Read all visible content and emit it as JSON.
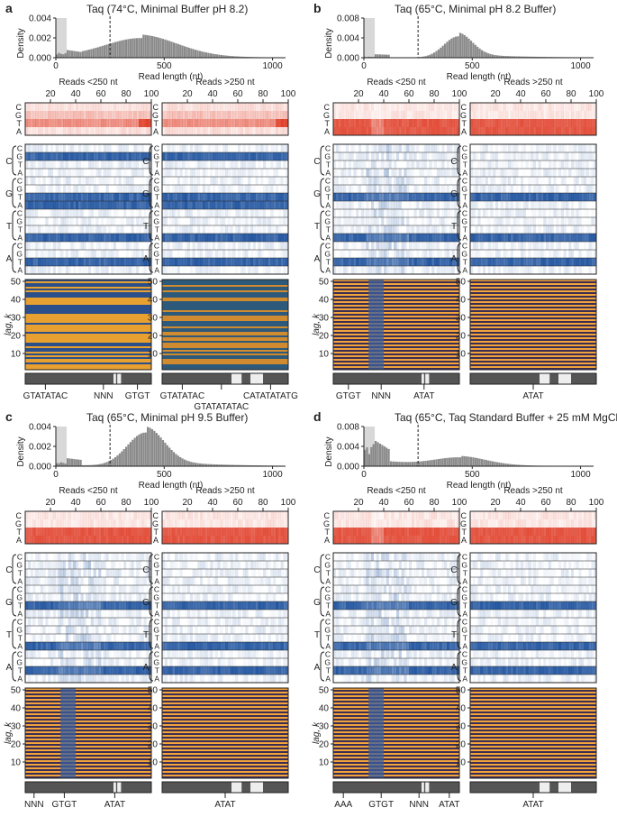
{
  "panels": [
    {
      "letter": "a",
      "title": "Taq (74°C, Minimal Buffer pH 8.2)",
      "hist": {
        "ylabel": "Density",
        "xlabel": "Read length (nt)",
        "yticks": [
          "0.000",
          "0.002",
          "0.004"
        ],
        "ymax": 0.0045,
        "xticks": [
          "0",
          "500",
          "1000"
        ],
        "xmax": 1060,
        "shade_max": 50,
        "dashed": 250,
        "peak": 390,
        "spread": 170,
        "peak_density": 0.0022,
        "early": 0.0005
      },
      "heat_left_title": "Reads <250 nt",
      "heat_right_title": "Reads >250 nt",
      "pos_ticks": [
        "20",
        "40",
        "60",
        "80",
        "100"
      ],
      "lag_label": "lag, k",
      "lag_ticks": [
        "10",
        "20",
        "30",
        "40",
        "50"
      ],
      "left_labels": [
        {
          "text": "GTATATAC",
          "at": 0.16
        },
        {
          "text": "NNN",
          "at": 0.62
        },
        {
          "text": "GTGT",
          "at": 0.89
        }
      ],
      "right_labels": [
        {
          "text": "GTATATAC",
          "at": 0.16
        },
        {
          "text": "GTATATATAC",
          "at": 0.47
        },
        {
          "text": "CATATATATG",
          "at": 0.86
        }
      ]
    },
    {
      "letter": "b",
      "title": "Taq (65°C, Minimal pH 8.2 Buffer)",
      "hist": {
        "ylabel": "Density",
        "xlabel": "Read length (nt)",
        "yticks": [
          "0.000",
          "0.004",
          "0.008"
        ],
        "ymax": 0.008,
        "xticks": [
          "0",
          "500",
          "1000"
        ],
        "xmax": 1060,
        "shade_max": 50,
        "dashed": 250,
        "peak": 430,
        "spread": 65,
        "peak_density": 0.0043,
        "early": 0.0002
      },
      "heat_left_title": "Reads <250 nt",
      "heat_right_title": "Reads >250 nt",
      "pos_ticks": [
        "20",
        "40",
        "60",
        "80",
        "100"
      ],
      "lag_label": "lag, k",
      "lag_ticks": [
        "10",
        "20",
        "30",
        "40",
        "50"
      ],
      "left_labels": [
        {
          "text": "GTGT",
          "at": 0.12
        },
        {
          "text": "NNN",
          "at": 0.38
        },
        {
          "text": "ATAT",
          "at": 0.72
        }
      ],
      "right_labels": [
        {
          "text": "ATAT",
          "at": 0.5
        }
      ]
    },
    {
      "letter": "c",
      "title": "Taq (65°C, Minimal pH 9.5 Buffer)",
      "hist": {
        "ylabel": "Density",
        "xlabel": "Read length (nt)",
        "yticks": [
          "0.000",
          "0.002",
          "0.004"
        ],
        "ymax": 0.0045,
        "xticks": [
          "0",
          "500",
          "1000"
        ],
        "xmax": 1060,
        "shade_max": 50,
        "dashed": 250,
        "peak": 410,
        "spread": 85,
        "peak_density": 0.0038,
        "early": 0.0004
      },
      "heat_left_title": "Reads <250 nt",
      "heat_right_title": "Reads >250 nt",
      "pos_ticks": [
        "20",
        "40",
        "60",
        "80",
        "100"
      ],
      "lag_label": "lag, k",
      "lag_ticks": [
        "10",
        "20",
        "30",
        "40",
        "50"
      ],
      "left_labels": [
        {
          "text": "NNN",
          "at": 0.07
        },
        {
          "text": "GTGT",
          "at": 0.31
        },
        {
          "text": "ATAT",
          "at": 0.71
        }
      ],
      "right_labels": [
        {
          "text": "ATAT",
          "at": 0.5
        }
      ]
    },
    {
      "letter": "d",
      "title": "Taq (65°C, Taq Standard Buffer + 25 mM MgCl",
      "title_sub": "2",
      "title_end": ")",
      "hist": {
        "ylabel": "Density",
        "xlabel": "Read length (nt)",
        "yticks": [
          "0.000",
          "0.004",
          "0.008"
        ],
        "ymax": 0.008,
        "xticks": [
          "0",
          "500",
          "1000"
        ],
        "xmax": 1060,
        "shade_max": 50,
        "dashed": 250,
        "peak": 440,
        "spread": 120,
        "peak_density": 0.0016,
        "early": 0.0038
      },
      "heat_left_title": "Reads <250 nt",
      "heat_right_title": "Reads >250 nt",
      "pos_ticks": [
        "20",
        "40",
        "60",
        "80",
        "100"
      ],
      "lag_label": "lag, k",
      "lag_ticks": [
        "10",
        "20",
        "30",
        "40",
        "50"
      ],
      "left_labels": [
        {
          "text": "AAA",
          "at": 0.08
        },
        {
          "text": "GTGT",
          "at": 0.38
        },
        {
          "text": "NNN",
          "at": 0.68
        },
        {
          "text": "ATAT",
          "at": 0.92
        }
      ],
      "right_labels": [
        {
          "text": "ATAT",
          "at": 0.5
        }
      ]
    }
  ],
  "nucleotides": [
    "C",
    "G",
    "T",
    "A"
  ],
  "dinuc_groups": [
    "C",
    "G",
    "T",
    "A"
  ],
  "colors": {
    "bar": "#8a8a8a",
    "shade": "#d8d8d8",
    "red": "#e0402a",
    "blue": "#1a4f9c",
    "gray_strip": "#555555"
  },
  "chart_data": [
    {
      "type": "area",
      "title": "Taq (74°C, Minimal Buffer pH 8.2)",
      "xlabel": "Read length (nt)",
      "ylabel": "Density",
      "xlim": [
        0,
        1060
      ],
      "ylim": [
        0,
        0.0045
      ],
      "peak_x": 390,
      "peak_y": 0.0022
    },
    {
      "type": "area",
      "title": "Taq (65°C, Minimal pH 8.2 Buffer)",
      "xlabel": "Read length (nt)",
      "ylabel": "Density",
      "xlim": [
        0,
        1060
      ],
      "ylim": [
        0,
        0.008
      ],
      "peak_x": 430,
      "peak_y": 0.0043
    },
    {
      "type": "area",
      "title": "Taq (65°C, Minimal pH 9.5 Buffer)",
      "xlabel": "Read length (nt)",
      "ylabel": "Density",
      "xlim": [
        0,
        1060
      ],
      "ylim": [
        0,
        0.0045
      ],
      "peak_x": 410,
      "peak_y": 0.0038
    },
    {
      "type": "area",
      "title": "Taq (65°C, Taq Standard Buffer + 25 mM MgCl2)",
      "xlabel": "Read length (nt)",
      "ylabel": "Density",
      "xlim": [
        0,
        1060
      ],
      "ylim": [
        0,
        0.008
      ],
      "peak_x": 440,
      "peak_y": 0.0016
    }
  ]
}
